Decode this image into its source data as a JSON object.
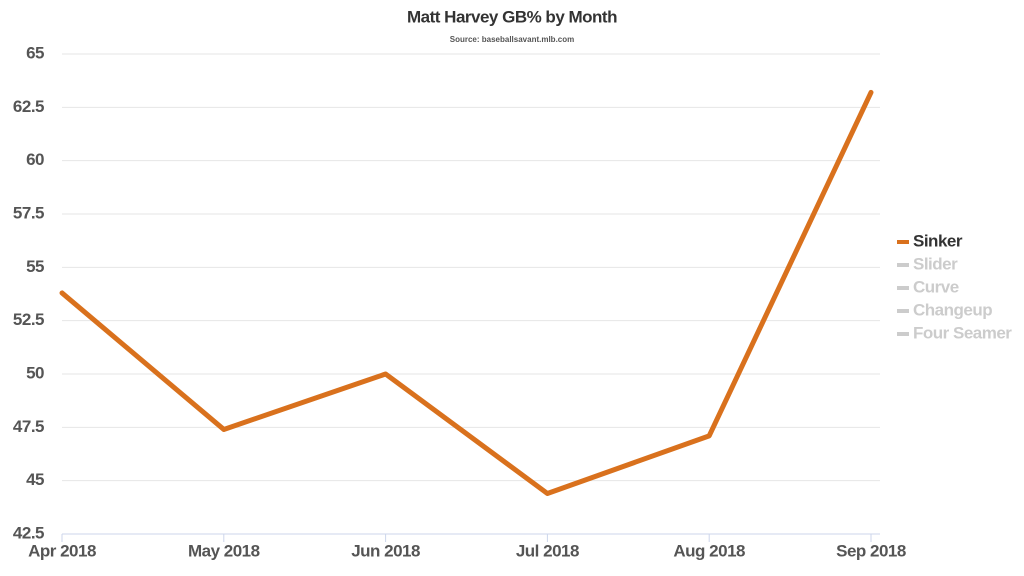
{
  "chart_data": {
    "type": "line",
    "title": "Matt Harvey GB% by Month",
    "subtitle": "Source: baseballsavant.mlb.com",
    "categories": [
      "Apr 2018",
      "May 2018",
      "Jun 2018",
      "Jul 2018",
      "Aug 2018",
      "Sep 2018"
    ],
    "series": [
      {
        "name": "Sinker",
        "color": "#d9711d",
        "visible": true,
        "values": [
          53.8,
          47.4,
          50.0,
          44.4,
          47.1,
          63.2
        ]
      },
      {
        "name": "Slider",
        "color": "#cccccc",
        "visible": false,
        "values": [
          null,
          null,
          null,
          null,
          null,
          null
        ]
      },
      {
        "name": "Curve",
        "color": "#cccccc",
        "visible": false,
        "values": [
          null,
          null,
          null,
          null,
          null,
          null
        ]
      },
      {
        "name": "Changeup",
        "color": "#cccccc",
        "visible": false,
        "values": [
          null,
          null,
          null,
          null,
          null,
          null
        ]
      },
      {
        "name": "Four Seamer",
        "color": "#cccccc",
        "visible": false,
        "values": [
          null,
          null,
          null,
          null,
          null,
          null
        ]
      }
    ],
    "ylim": [
      42.5,
      65
    ],
    "yticks": [
      42.5,
      45,
      47.5,
      50,
      52.5,
      55,
      57.5,
      60,
      62.5,
      65
    ],
    "grid": true,
    "legend": "right"
  }
}
